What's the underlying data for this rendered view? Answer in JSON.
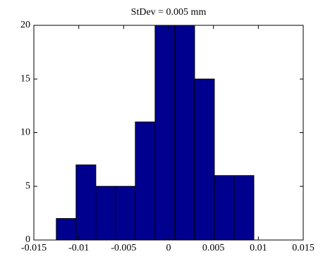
{
  "chart_data": {
    "type": "histogram",
    "title": "StDev = 0.005 mm",
    "bins": [
      -0.0125,
      -0.0103,
      -0.0081,
      -0.0059,
      -0.0037,
      -0.0015,
      0.0007,
      0.0029,
      0.0051,
      0.0073,
      0.0095
    ],
    "values": [
      2,
      7,
      5,
      5,
      11,
      20,
      20,
      15,
      6,
      6
    ],
    "color": "#00008f",
    "xlim": [
      -0.015,
      0.015
    ],
    "xticks": [
      -0.015,
      -0.01,
      -0.005,
      0,
      0.005,
      0.01,
      0.015
    ],
    "ylim": [
      0,
      20
    ],
    "yticks": [
      0,
      5,
      10,
      15,
      20
    ],
    "grid": false
  }
}
